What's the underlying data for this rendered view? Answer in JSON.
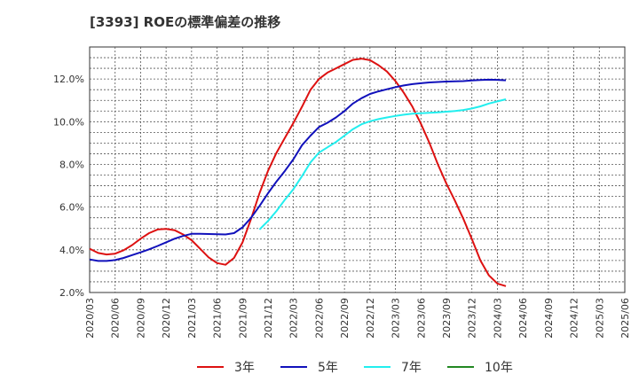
{
  "chart_data": {
    "type": "line",
    "title": "[3393]  ROEの標準偏差の推移",
    "xlabel": "",
    "ylabel": "",
    "ylim": [
      2.0,
      13.5
    ],
    "y_ticks": [
      2.0,
      4.0,
      6.0,
      8.0,
      10.0,
      12.0
    ],
    "y_tick_labels": [
      "2.0%",
      "4.0%",
      "6.0%",
      "8.0%",
      "10.0%",
      "12.0%"
    ],
    "x_tick_labels": [
      "2020/03",
      "2020/06",
      "2020/09",
      "2020/12",
      "2021/03",
      "2021/06",
      "2021/09",
      "2021/12",
      "2022/03",
      "2022/06",
      "2022/09",
      "2022/12",
      "2023/03",
      "2023/06",
      "2023/09",
      "2023/12",
      "2024/03",
      "2024/06",
      "2024/09",
      "2024/12",
      "2025/03",
      "2025/06"
    ],
    "grid": true,
    "legend_position": "bottom",
    "series": [
      {
        "name": "3年",
        "color": "#dd1111",
        "points": [
          [
            0,
            4.05
          ],
          [
            1,
            3.85
          ],
          [
            2,
            3.78
          ],
          [
            3,
            3.82
          ],
          [
            4,
            3.98
          ],
          [
            5,
            4.22
          ],
          [
            6,
            4.52
          ],
          [
            7,
            4.78
          ],
          [
            8,
            4.95
          ],
          [
            9,
            4.98
          ],
          [
            10,
            4.92
          ],
          [
            11,
            4.72
          ],
          [
            12,
            4.45
          ],
          [
            13,
            4.05
          ],
          [
            14,
            3.65
          ],
          [
            15,
            3.38
          ],
          [
            16,
            3.3
          ],
          [
            17,
            3.62
          ],
          [
            18,
            4.35
          ],
          [
            19,
            5.45
          ],
          [
            20,
            6.65
          ],
          [
            21,
            7.7
          ],
          [
            22,
            8.55
          ],
          [
            23,
            9.25
          ],
          [
            24,
            9.95
          ],
          [
            25,
            10.7
          ],
          [
            26,
            11.5
          ],
          [
            27,
            12.0
          ],
          [
            28,
            12.3
          ],
          [
            29,
            12.5
          ],
          [
            30,
            12.7
          ],
          [
            31,
            12.9
          ],
          [
            32,
            12.95
          ],
          [
            33,
            12.88
          ],
          [
            34,
            12.65
          ],
          [
            35,
            12.35
          ],
          [
            36,
            11.9
          ],
          [
            37,
            11.35
          ],
          [
            38,
            10.7
          ],
          [
            39,
            9.9
          ],
          [
            40,
            9.0
          ],
          [
            41,
            8.0
          ],
          [
            42,
            7.1
          ],
          [
            43,
            6.3
          ],
          [
            44,
            5.45
          ],
          [
            45,
            4.5
          ],
          [
            46,
            3.5
          ],
          [
            47,
            2.8
          ],
          [
            48,
            2.42
          ],
          [
            49,
            2.3
          ]
        ]
      },
      {
        "name": "5年",
        "color": "#1111bb",
        "points": [
          [
            0,
            3.55
          ],
          [
            1,
            3.48
          ],
          [
            2,
            3.48
          ],
          [
            3,
            3.52
          ],
          [
            4,
            3.62
          ],
          [
            5,
            3.75
          ],
          [
            6,
            3.88
          ],
          [
            7,
            4.02
          ],
          [
            8,
            4.18
          ],
          [
            9,
            4.35
          ],
          [
            10,
            4.52
          ],
          [
            11,
            4.65
          ],
          [
            12,
            4.75
          ],
          [
            13,
            4.75
          ],
          [
            14,
            4.74
          ],
          [
            15,
            4.73
          ],
          [
            16,
            4.72
          ],
          [
            17,
            4.78
          ],
          [
            18,
            5.05
          ],
          [
            19,
            5.5
          ],
          [
            20,
            6.05
          ],
          [
            21,
            6.65
          ],
          [
            22,
            7.2
          ],
          [
            23,
            7.7
          ],
          [
            24,
            8.25
          ],
          [
            25,
            8.9
          ],
          [
            26,
            9.35
          ],
          [
            27,
            9.75
          ],
          [
            28,
            9.95
          ],
          [
            29,
            10.2
          ],
          [
            30,
            10.5
          ],
          [
            31,
            10.85
          ],
          [
            32,
            11.1
          ],
          [
            33,
            11.3
          ],
          [
            34,
            11.42
          ],
          [
            35,
            11.52
          ],
          [
            36,
            11.62
          ],
          [
            37,
            11.7
          ],
          [
            38,
            11.76
          ],
          [
            39,
            11.8
          ],
          [
            40,
            11.84
          ],
          [
            41,
            11.86
          ],
          [
            42,
            11.88
          ],
          [
            43,
            11.89
          ],
          [
            44,
            11.9
          ],
          [
            45,
            11.93
          ],
          [
            46,
            11.95
          ],
          [
            47,
            11.97
          ],
          [
            48,
            11.96
          ],
          [
            49,
            11.94
          ]
        ]
      },
      {
        "name": "7年",
        "color": "#22eeee",
        "points": [
          [
            20,
            4.95
          ],
          [
            21,
            5.35
          ],
          [
            22,
            5.82
          ],
          [
            23,
            6.35
          ],
          [
            24,
            6.85
          ],
          [
            25,
            7.45
          ],
          [
            26,
            8.1
          ],
          [
            27,
            8.55
          ],
          [
            28,
            8.8
          ],
          [
            29,
            9.05
          ],
          [
            30,
            9.35
          ],
          [
            31,
            9.65
          ],
          [
            32,
            9.88
          ],
          [
            33,
            10.02
          ],
          [
            34,
            10.12
          ],
          [
            35,
            10.2
          ],
          [
            36,
            10.27
          ],
          [
            37,
            10.33
          ],
          [
            38,
            10.38
          ],
          [
            39,
            10.4
          ],
          [
            40,
            10.42
          ],
          [
            41,
            10.44
          ],
          [
            42,
            10.47
          ],
          [
            43,
            10.5
          ],
          [
            44,
            10.55
          ],
          [
            45,
            10.62
          ],
          [
            46,
            10.72
          ],
          [
            47,
            10.85
          ],
          [
            48,
            10.95
          ],
          [
            49,
            11.05
          ]
        ]
      },
      {
        "name": "10年",
        "color": "#228822",
        "points": []
      }
    ]
  }
}
